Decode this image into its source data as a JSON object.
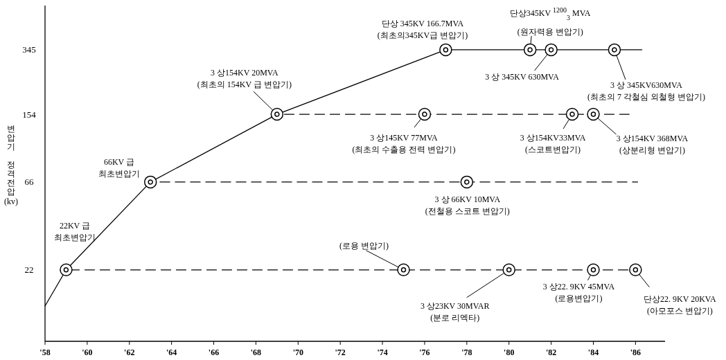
{
  "chart_data": {
    "type": "line",
    "ylabel": "변압기 정격전압 (kv)",
    "xlim": [
      58,
      87.4
    ],
    "xticks": [
      {
        "value": 58,
        "label": "'58"
      },
      {
        "value": 60,
        "label": "'60"
      },
      {
        "value": 62,
        "label": "'62"
      },
      {
        "value": 64,
        "label": "'64"
      },
      {
        "value": 66,
        "label": "'66"
      },
      {
        "value": 68,
        "label": "'68"
      },
      {
        "value": 70,
        "label": "'70"
      },
      {
        "value": 72,
        "label": "'72"
      },
      {
        "value": 74,
        "label": "'74"
      },
      {
        "value": 76,
        "label": "'76"
      },
      {
        "value": 78,
        "label": "'78"
      },
      {
        "value": 80,
        "label": "'80"
      },
      {
        "value": 82,
        "label": "'82"
      },
      {
        "value": 84,
        "label": "'84"
      },
      {
        "value": 86,
        "label": "'86"
      }
    ],
    "ylim": [
      9,
      600
    ],
    "yticks": [
      22,
      66,
      154,
      345
    ],
    "log": true,
    "series": [
      {
        "color": "#000000",
        "line_style": "solid",
        "x": [
          58,
          59,
          63,
          69,
          77,
          81,
          82,
          85,
          86.3
        ],
        "values": [
          14,
          22,
          66,
          154,
          345,
          345,
          345,
          345,
          345
        ]
      },
      {
        "color": "#000000",
        "line_style": "dashed",
        "x": [
          59,
          86
        ],
        "values": [
          22,
          22
        ]
      },
      {
        "color": "#000000",
        "line_style": "dashed",
        "x": [
          63,
          86.1
        ],
        "values": [
          66,
          66
        ]
      },
      {
        "color": "#000000",
        "line_style": "dashed",
        "x": [
          69,
          85.7
        ],
        "values": [
          154,
          154
        ]
      },
      {
        "type": "scatter",
        "color": "#000000",
        "marker": "circle",
        "x": [
          59,
          75,
          80,
          84,
          86,
          63,
          78,
          69,
          76,
          83,
          84,
          77,
          81,
          82,
          85
        ],
        "values": [
          22,
          22,
          22,
          22,
          22,
          66,
          66,
          154,
          154,
          154,
          154,
          345,
          345,
          345,
          345
        ]
      }
    ],
    "annotations": [
      "22KV 급\n최초변압기",
      "66KV 급\n최초변압기",
      {
        "text": "3 상154KV 20MVA\n(최초의 154KV 급 변압기)",
        "x": 69,
        "y": 154
      },
      "단상 345KV 166.7MVA\n(최초의345KV급 변압기)",
      {
        "text": "단상345KV $^{1200}$$_{3}$ MVA\n(원자력용 변압기)",
        "x": 81,
        "y": 345
      },
      {
        "text": "3 상 345KV 630MVA",
        "x": 82,
        "y": 345
      },
      {
        "text": "3 상 345KV630MVA\n(최초의 7 각철심 외철형 변압기)",
        "x": 85,
        "y": 345
      },
      {
        "text": "3 상145KV 77MVA\n(최초의 수출용 전력 변압기)",
        "x": 76,
        "y": 154
      },
      {
        "text": "3 상154KV33MVA\n(스코트변압기)",
        "x": 83,
        "y": 154
      },
      {
        "text": "3 상154KV 368MVA\n(상분리형 변압기)",
        "x": 84,
        "y": 154
      },
      {
        "text": "3 상 66KV 10MVA\n(전철용 스코트 변압기)",
        "x": 78,
        "y": 66
      },
      {
        "text": "(로용 변압기)",
        "x": 75,
        "y": 22
      },
      {
        "text": "3 상23KV 30MVAR\n(분로 리엑타)",
        "x": 80,
        "y": 22
      },
      {
        "text": "3 상22. 9KV 45MVA\n(로용변압기)",
        "x": 84,
        "y": 22
      },
      {
        "text": "단상22. 9KV 20KVA\n(아모포스 변압기)",
        "x": 86,
        "y": 22
      }
    ]
  }
}
